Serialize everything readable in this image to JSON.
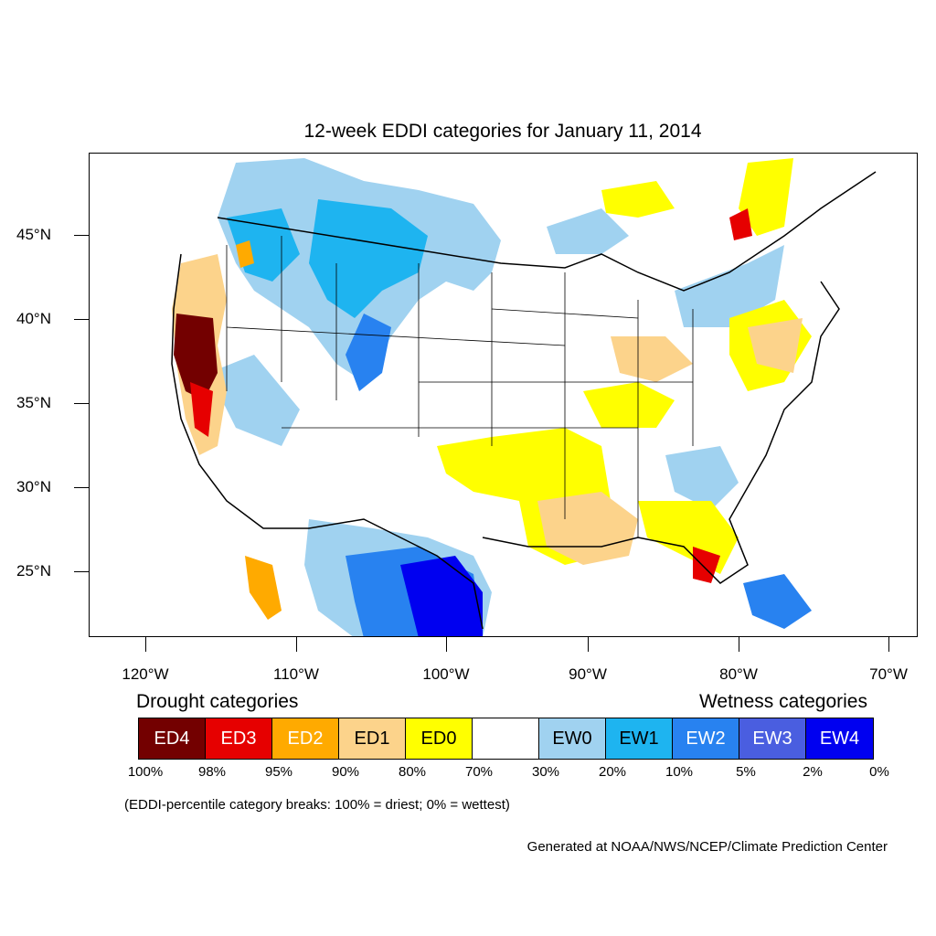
{
  "title": "12-week EDDI categories for January 11, 2014",
  "axes": {
    "lat_labels": [
      "45°N",
      "40°N",
      "35°N",
      "30°N",
      "25°N"
    ],
    "lon_labels": [
      "120°W",
      "110°W",
      "100°W",
      "90°W",
      "80°W",
      "70°W"
    ]
  },
  "legend": {
    "drought_heading": "Drought categories",
    "wetness_heading": "Wetness categories",
    "categories": [
      {
        "label": "ED4",
        "color": "#730000",
        "text_color": "#ffffff"
      },
      {
        "label": "ED3",
        "color": "#e60000",
        "text_color": "#ffffff"
      },
      {
        "label": "ED2",
        "color": "#ffaa00",
        "text_color": "#ffffff"
      },
      {
        "label": "ED1",
        "color": "#fcd38b",
        "text_color": "#000000"
      },
      {
        "label": "ED0",
        "color": "#ffff00",
        "text_color": "#000000"
      },
      {
        "label": "",
        "color": "#ffffff",
        "text_color": "#000000"
      },
      {
        "label": "EW0",
        "color": "#a0d2f0",
        "text_color": "#000000"
      },
      {
        "label": "EW1",
        "color": "#1eb4f0",
        "text_color": "#000000"
      },
      {
        "label": "EW2",
        "color": "#2882f0",
        "text_color": "#ffffff"
      },
      {
        "label": "EW3",
        "color": "#4a5ee0",
        "text_color": "#ffffff"
      },
      {
        "label": "EW4",
        "color": "#0000f0",
        "text_color": "#ffffff"
      }
    ],
    "percentiles": [
      "100%",
      "98%",
      "95%",
      "90%",
      "80%",
      "70%",
      "30%",
      "20%",
      "10%",
      "5%",
      "2%",
      "0%"
    ]
  },
  "note": "(EDDI-percentile category breaks: 100% = driest; 0% = wettest)",
  "credit": "Generated at NOAA/NWS/NCEP/Climate Prediction Center"
}
